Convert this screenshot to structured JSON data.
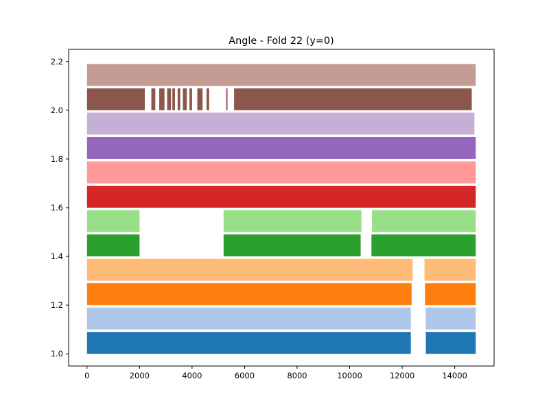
{
  "chart_data": {
    "type": "scatter",
    "title": "Angle - Fold 22 (y=0)",
    "xlabel": "",
    "ylabel": "",
    "xlim": [
      -700,
      15500
    ],
    "ylim": [
      0.95,
      2.25
    ],
    "xticks": [
      0,
      2000,
      4000,
      6000,
      8000,
      10000,
      12000,
      14000
    ],
    "xtick_labels": [
      "0",
      "2000",
      "4000",
      "6000",
      "8000",
      "10000",
      "12000",
      "14000"
    ],
    "yticks": [
      1.0,
      1.2,
      1.4,
      1.6,
      1.8,
      2.0,
      2.2
    ],
    "ytick_labels": [
      "1.0",
      "1.2",
      "1.4",
      "1.6",
      "1.8",
      "2.0",
      "2.2"
    ],
    "grid": false,
    "legend": "none",
    "series": [
      {
        "color": "#1f77b4",
        "y_range": [
          1.0,
          1.09
        ],
        "x_segments": [
          [
            0,
            12330
          ],
          [
            12900,
            14800
          ]
        ]
      },
      {
        "color": "#aec7e8",
        "y_range": [
          1.1,
          1.19
        ],
        "x_segments": [
          [
            0,
            12330
          ],
          [
            12900,
            14800
          ]
        ]
      },
      {
        "color": "#ff7f0e",
        "y_range": [
          1.2,
          1.29
        ],
        "x_segments": [
          [
            0,
            12360
          ],
          [
            12870,
            14800
          ]
        ]
      },
      {
        "color": "#ffbb78",
        "y_range": [
          1.3,
          1.39
        ],
        "x_segments": [
          [
            0,
            12400
          ],
          [
            12850,
            14800
          ]
        ]
      },
      {
        "color": "#2ca02c",
        "y_range": [
          1.4,
          1.49
        ],
        "x_segments": [
          [
            0,
            2000
          ],
          [
            5200,
            10420
          ],
          [
            10830,
            14800
          ]
        ]
      },
      {
        "color": "#98df8a",
        "y_range": [
          1.5,
          1.59
        ],
        "x_segments": [
          [
            0,
            2000
          ],
          [
            5200,
            10450
          ],
          [
            10850,
            14800
          ]
        ]
      },
      {
        "color": "#d62728",
        "y_range": [
          1.6,
          1.69
        ],
        "x_segments": [
          [
            0,
            14800
          ]
        ]
      },
      {
        "color": "#ff9896",
        "y_range": [
          1.7,
          1.79
        ],
        "x_segments": [
          [
            0,
            14800
          ]
        ]
      },
      {
        "color": "#9467bd",
        "y_range": [
          1.8,
          1.89
        ],
        "x_segments": [
          [
            0,
            14800
          ]
        ]
      },
      {
        "color": "#c5b0d5",
        "y_range": [
          1.9,
          1.99
        ],
        "x_segments": [
          [
            0,
            14750
          ]
        ]
      },
      {
        "color": "#8c564b",
        "y_range": [
          2.0,
          2.09
        ],
        "x_segments": [
          [
            0,
            2200
          ],
          [
            2450,
            2600
          ],
          [
            2750,
            2950
          ],
          [
            3050,
            3200
          ],
          [
            3250,
            3350
          ],
          [
            3450,
            3550
          ],
          [
            3650,
            3800
          ],
          [
            3900,
            4000
          ],
          [
            4200,
            4400
          ],
          [
            4550,
            4650
          ],
          [
            5300,
            5350
          ],
          [
            5600,
            14650
          ]
        ]
      },
      {
        "color": "#c49c94",
        "y_range": [
          2.1,
          2.19
        ],
        "x_segments": [
          [
            0,
            14800
          ]
        ]
      }
    ]
  }
}
